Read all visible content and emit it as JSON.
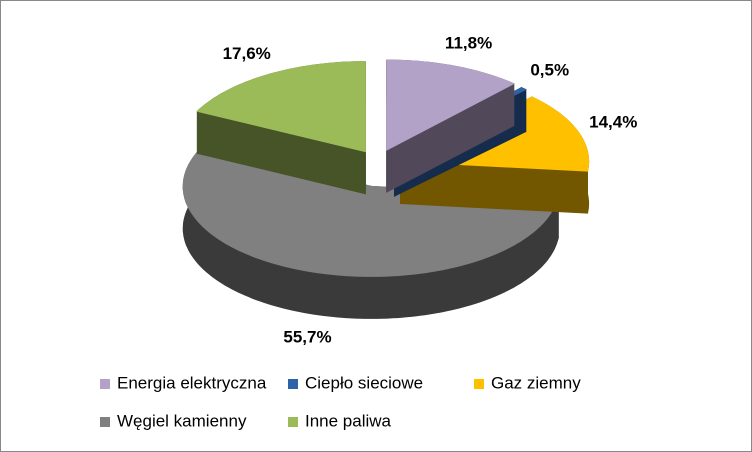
{
  "chart_data": {
    "type": "pie3d",
    "categories": [
      "Energia elektryczna",
      "Ciepło sieciowe",
      "Gaz ziemny",
      "Węgiel kamienny",
      "Inne paliwa"
    ],
    "values": [
      11.8,
      0.5,
      14.4,
      55.7,
      17.6
    ],
    "value_labels": [
      "11,8%",
      "0,5%",
      "14,4%",
      "55,7%",
      "17,6%"
    ],
    "colors": [
      "#b3a2c7",
      "#2e62a8",
      "#ffc000",
      "#808080",
      "#9bbb59"
    ]
  }
}
